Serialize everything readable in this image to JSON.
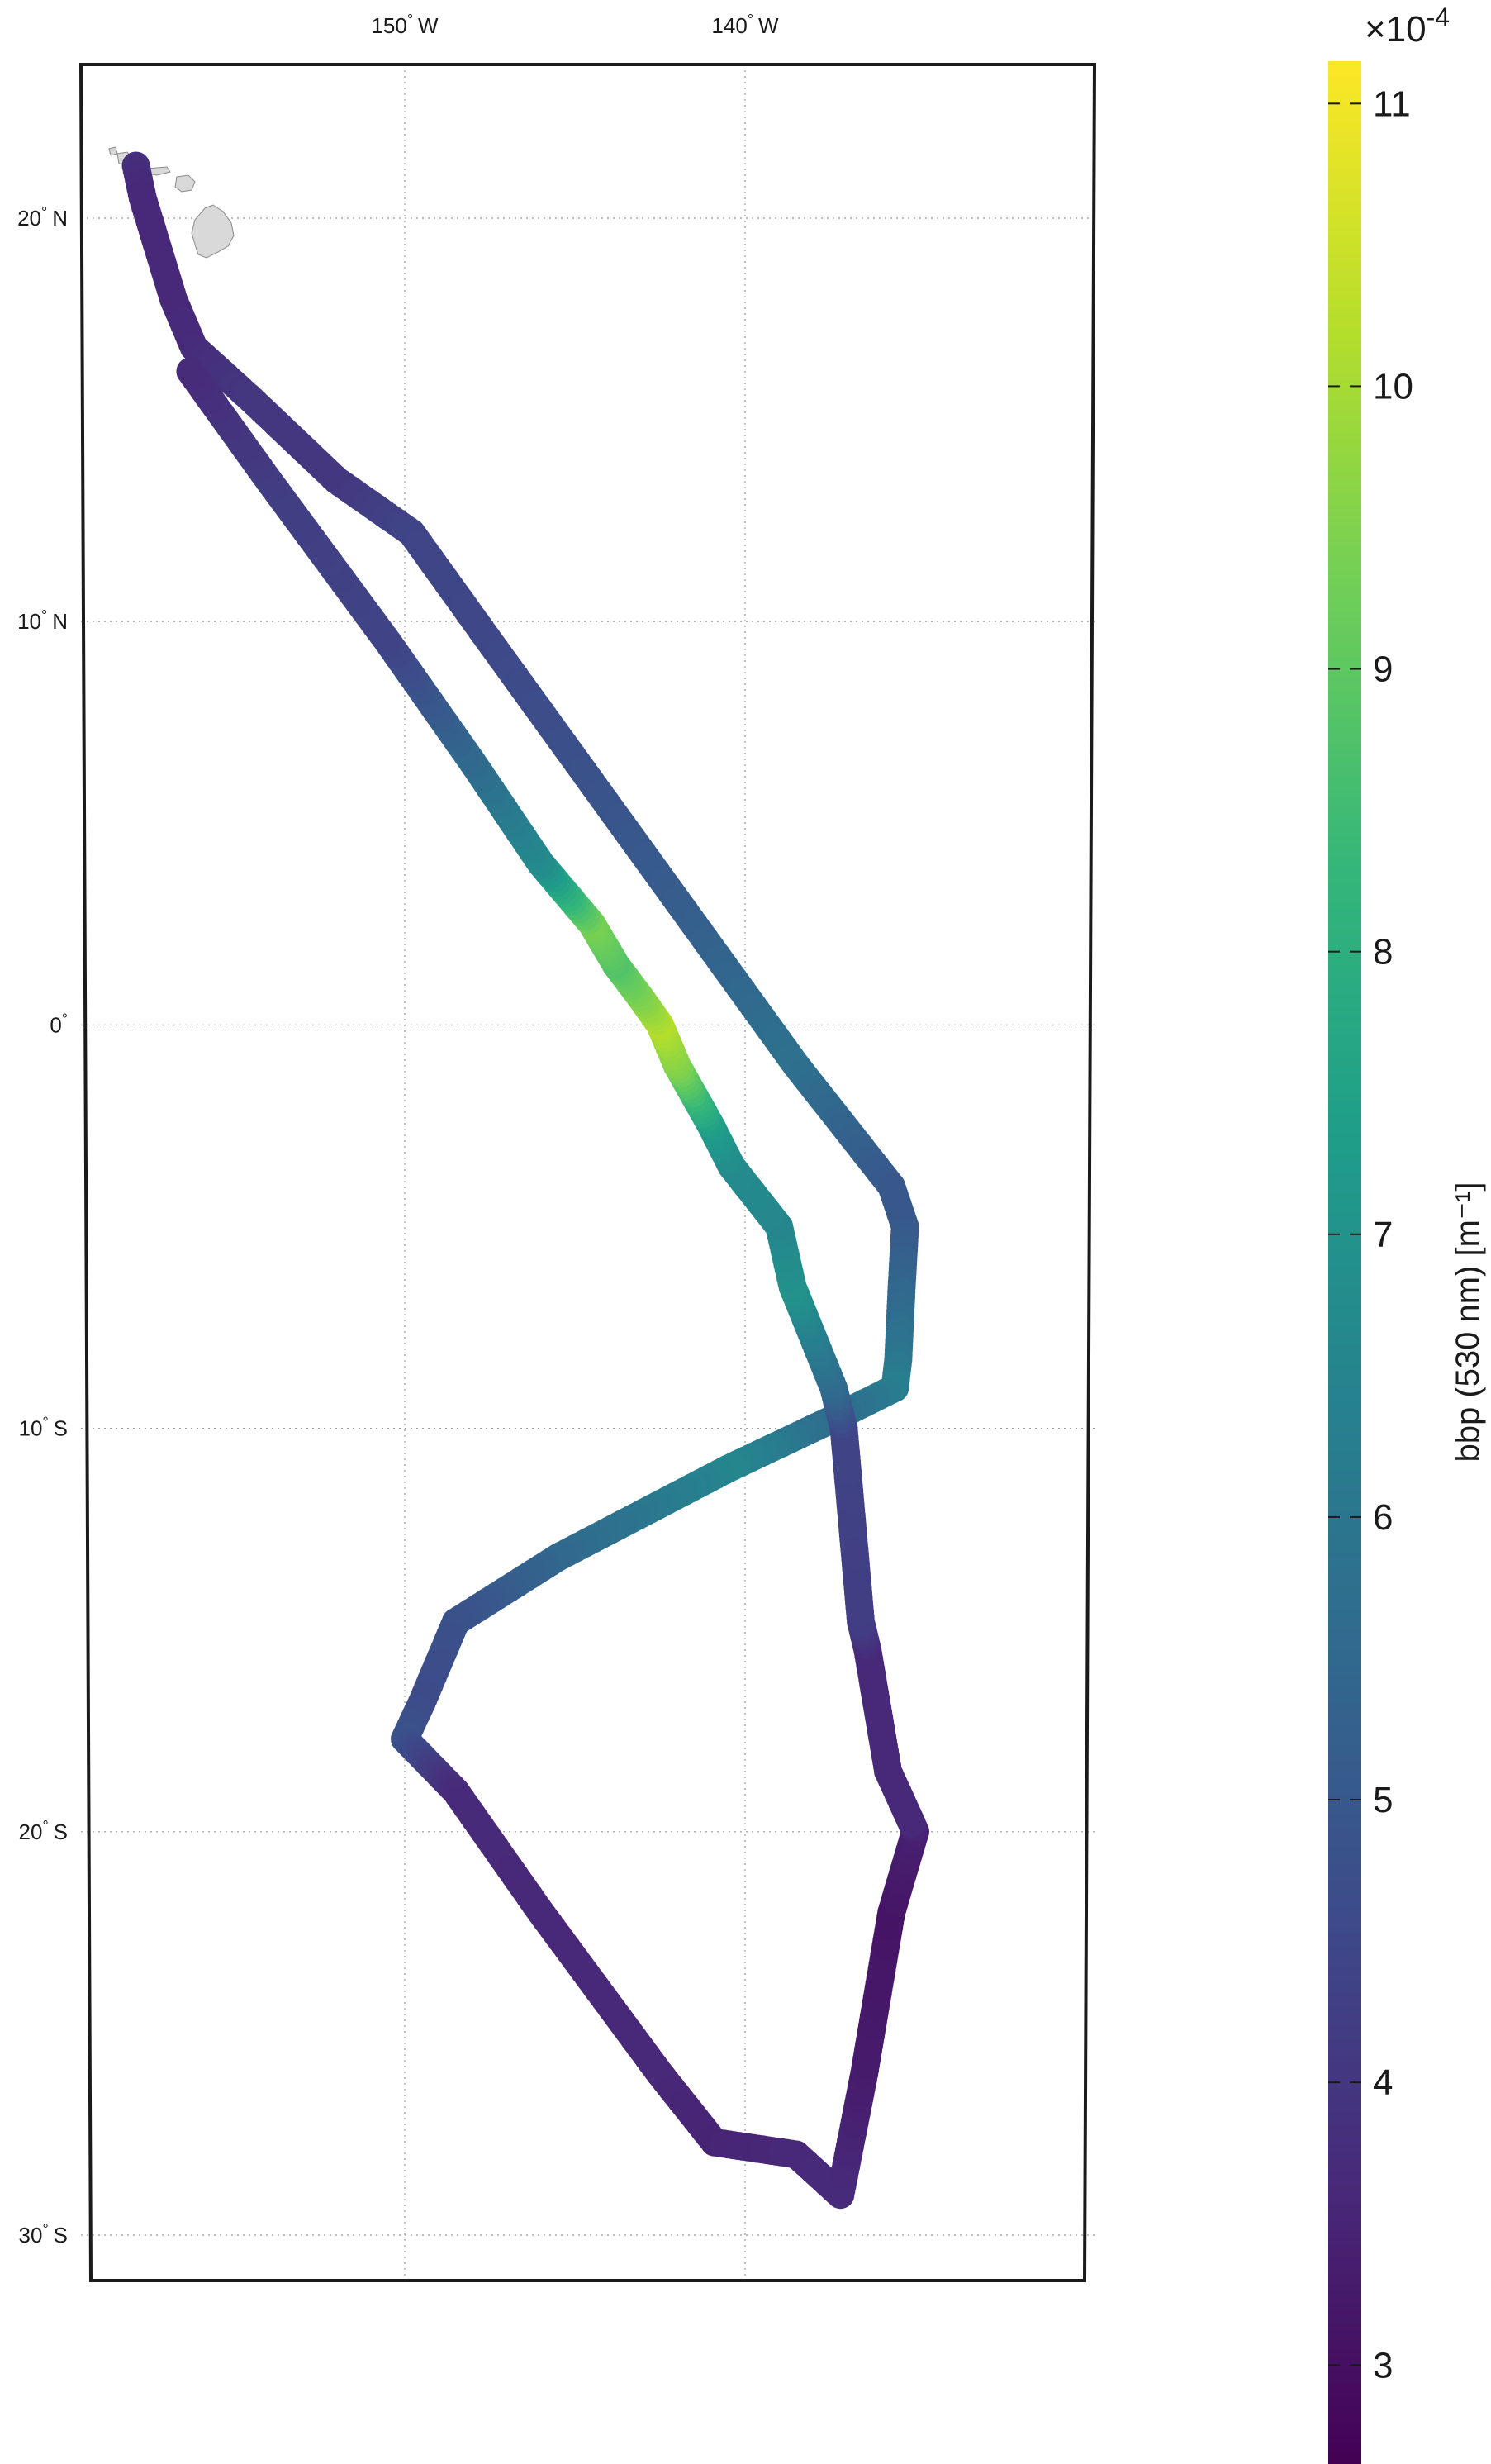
{
  "map": {
    "lon_ticks": [
      {
        "lon": -150,
        "num": "150",
        "deg": "°",
        "dir": "W"
      },
      {
        "lon": -140,
        "num": "140",
        "deg": "°",
        "dir": "W"
      }
    ],
    "lat_ticks": [
      {
        "lat": 20,
        "num": "20",
        "deg": "°",
        "dir": "N"
      },
      {
        "lat": 10,
        "num": "10",
        "deg": "°",
        "dir": "N"
      },
      {
        "lat": 0,
        "num": "0",
        "deg": "°",
        "dir": ""
      },
      {
        "lat": -10,
        "num": "10",
        "deg": "°",
        "dir": "S"
      },
      {
        "lat": -20,
        "num": "20",
        "deg": "°",
        "dir": "S"
      },
      {
        "lat": -30,
        "num": "30",
        "deg": "°",
        "dir": "S"
      }
    ],
    "extent": {
      "lon_min": -159.5,
      "lon_max": -130.2,
      "lat_min": -31.2,
      "lat_max": 23.5
    },
    "land_color": "#d9d9d9",
    "grid": "dotted",
    "track": [
      {
        "lon": -157.9,
        "lat": 21.3,
        "bbp": 3.8
      },
      {
        "lon": -157.7,
        "lat": 20.5,
        "bbp": 3.6
      },
      {
        "lon": -156.8,
        "lat": 18.0,
        "bbp": 3.6
      },
      {
        "lon": -156.2,
        "lat": 16.8,
        "bbp": 3.7
      },
      {
        "lon": -154.5,
        "lat": 15.5,
        "bbp": 4.0
      },
      {
        "lon": -152.0,
        "lat": 13.5,
        "bbp": 4.0
      },
      {
        "lon": -149.8,
        "lat": 12.2,
        "bbp": 4.4
      },
      {
        "lon": -147.5,
        "lat": 9.5,
        "bbp": 4.5
      },
      {
        "lon": -144.5,
        "lat": 6.0,
        "bbp": 4.8
      },
      {
        "lon": -141.5,
        "lat": 2.5,
        "bbp": 5.2
      },
      {
        "lon": -138.5,
        "lat": -1.0,
        "bbp": 5.8
      },
      {
        "lon": -135.7,
        "lat": -4.0,
        "bbp": 5.0
      },
      {
        "lon": -135.3,
        "lat": -5.0,
        "bbp": 5.0
      },
      {
        "lon": -135.4,
        "lat": -6.5,
        "bbp": 5.4
      },
      {
        "lon": -135.5,
        "lat": -8.3,
        "bbp": 6.0
      },
      {
        "lon": -135.6,
        "lat": -9.0,
        "bbp": 6.3
      },
      {
        "lon": -137.5,
        "lat": -9.8,
        "bbp": 5.6
      },
      {
        "lon": -140.5,
        "lat": -11.0,
        "bbp": 6.6
      },
      {
        "lon": -145.5,
        "lat": -13.2,
        "bbp": 5.5
      },
      {
        "lon": -148.5,
        "lat": -14.8,
        "bbp": 4.8
      },
      {
        "lon": -149.5,
        "lat": -16.8,
        "bbp": 4.6
      },
      {
        "lon": -150.0,
        "lat": -17.7,
        "bbp": 4.8
      },
      {
        "lon": -148.5,
        "lat": -19.0,
        "bbp": 3.7
      },
      {
        "lon": -146.0,
        "lat": -22.0,
        "bbp": 3.6
      },
      {
        "lon": -142.5,
        "lat": -26.0,
        "bbp": 3.6
      },
      {
        "lon": -140.9,
        "lat": -27.7,
        "bbp": 3.5
      },
      {
        "lon": -138.5,
        "lat": -28.0,
        "bbp": 3.6
      },
      {
        "lon": -137.2,
        "lat": -29.0,
        "bbp": 3.7
      },
      {
        "lon": -136.5,
        "lat": -26.0,
        "bbp": 3.3
      },
      {
        "lon": -135.7,
        "lat": -22.0,
        "bbp": 3.1
      },
      {
        "lon": -135.0,
        "lat": -20.0,
        "bbp": 3.4
      },
      {
        "lon": -135.1,
        "lat": -19.8,
        "bbp": 3.6
      },
      {
        "lon": -135.8,
        "lat": -18.5,
        "bbp": 3.6
      },
      {
        "lon": -136.4,
        "lat": -15.5,
        "bbp": 3.6
      },
      {
        "lon": -136.6,
        "lat": -14.8,
        "bbp": 4.2
      },
      {
        "lon": -137.1,
        "lat": -10.0,
        "bbp": 4.4
      },
      {
        "lon": -137.4,
        "lat": -9.0,
        "bbp": 5.5
      },
      {
        "lon": -138.6,
        "lat": -6.5,
        "bbp": 7.0
      },
      {
        "lon": -139.0,
        "lat": -5.0,
        "bbp": 6.6
      },
      {
        "lon": -140.4,
        "lat": -3.5,
        "bbp": 6.7
      },
      {
        "lon": -141.0,
        "lat": -2.5,
        "bbp": 7.3
      },
      {
        "lon": -142.0,
        "lat": -1.0,
        "bbp": 9.5
      },
      {
        "lon": -142.5,
        "lat": 0.0,
        "bbp": 10.2
      },
      {
        "lon": -143.0,
        "lat": 0.6,
        "bbp": 9.6
      },
      {
        "lon": -143.8,
        "lat": 1.5,
        "bbp": 8.8
      },
      {
        "lon": -144.5,
        "lat": 2.5,
        "bbp": 9.4
      },
      {
        "lon": -146.0,
        "lat": 4.0,
        "bbp": 6.8
      },
      {
        "lon": -148.0,
        "lat": 6.5,
        "bbp": 5.6
      },
      {
        "lon": -150.5,
        "lat": 9.5,
        "bbp": 4.4
      },
      {
        "lon": -154.0,
        "lat": 13.5,
        "bbp": 4.2
      },
      {
        "lon": -156.3,
        "lat": 16.2,
        "bbp": 3.7
      }
    ]
  },
  "colorbar": {
    "label": "bbp (530 nm) [m⁻¹]",
    "exponent_base": "×10",
    "exponent": "-4",
    "min": 2.65,
    "max": 11.15,
    "ticks": [
      {
        "value": 3,
        "label": "3"
      },
      {
        "value": 4,
        "label": "4"
      },
      {
        "value": 5,
        "label": "5"
      },
      {
        "value": 6,
        "label": "6"
      },
      {
        "value": 7,
        "label": "7"
      },
      {
        "value": 8,
        "label": "8"
      },
      {
        "value": 9,
        "label": "9"
      },
      {
        "value": 10,
        "label": "10"
      },
      {
        "value": 11,
        "label": "11"
      }
    ],
    "colormap": [
      "#440154",
      "#482878",
      "#3e4989",
      "#31688e",
      "#26828e",
      "#1f9e89",
      "#35b779",
      "#6ece58",
      "#b5de2b",
      "#fde725"
    ]
  }
}
